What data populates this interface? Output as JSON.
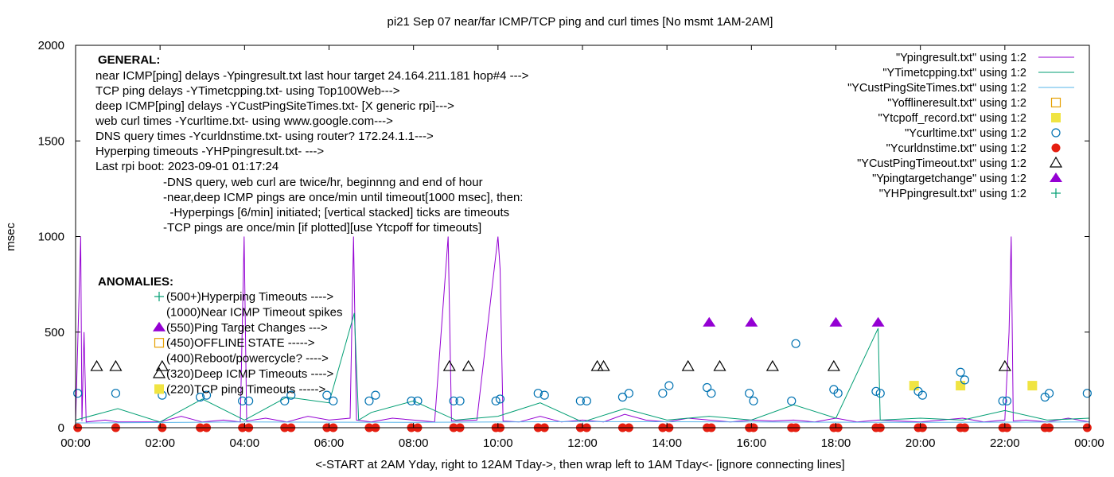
{
  "chart_data": {
    "type": "line",
    "title": "pi21 Sep 07  near/far ICMP/TCP ping and curl times [No msmt 1AM-2AM]",
    "ylabel": "msec",
    "xlabel": "<-START at 2AM Yday, right to 12AM Tday->, then wrap left to 1AM Tday<- [ignore connecting lines]",
    "xlim": [
      0,
      24
    ],
    "ylim": [
      0,
      2000
    ],
    "x_tick_labels": [
      "00:00",
      "02:00",
      "04:00",
      "06:00",
      "08:00",
      "10:00",
      "12:00",
      "14:00",
      "16:00",
      "18:00",
      "20:00",
      "22:00",
      "00:00"
    ],
    "y_tick_labels": [
      "0",
      "500",
      "1000",
      "1500",
      "2000"
    ],
    "grid": false,
    "legend_position": "top-right",
    "series": [
      {
        "name": "\"Ypingresult.txt\" using 1:2",
        "style": "line",
        "color": "#9400d3",
        "points": [
          [
            0,
            30
          ],
          [
            0.12,
            1000
          ],
          [
            0.15,
            35
          ],
          [
            0.2,
            500
          ],
          [
            0.25,
            30
          ],
          [
            0.7,
            40
          ],
          [
            1.0,
            30
          ],
          [
            2.0,
            30
          ],
          [
            2.5,
            60
          ],
          [
            3.0,
            30
          ],
          [
            3.5,
            40
          ],
          [
            3.9,
            30
          ],
          [
            3.99,
            1000
          ],
          [
            4.05,
            35
          ],
          [
            4.5,
            50
          ],
          [
            5.0,
            30
          ],
          [
            5.5,
            60
          ],
          [
            6.0,
            40
          ],
          [
            6.5,
            50
          ],
          [
            6.58,
            1000
          ],
          [
            6.65,
            40
          ],
          [
            7.0,
            30
          ],
          [
            7.5,
            50
          ],
          [
            8.0,
            40
          ],
          [
            8.5,
            30
          ],
          [
            8.82,
            1000
          ],
          [
            8.9,
            35
          ],
          [
            9.5,
            40
          ],
          [
            10.0,
            1000
          ],
          [
            10.05,
            830
          ],
          [
            10.12,
            35
          ],
          [
            10.5,
            30
          ],
          [
            11.0,
            60
          ],
          [
            11.5,
            30
          ],
          [
            12.0,
            40
          ],
          [
            12.5,
            30
          ],
          [
            13.0,
            70
          ],
          [
            13.5,
            40
          ],
          [
            14.0,
            30
          ],
          [
            14.5,
            50
          ],
          [
            15.0,
            40
          ],
          [
            15.5,
            30
          ],
          [
            16.0,
            40
          ],
          [
            16.5,
            35
          ],
          [
            17.0,
            40
          ],
          [
            17.5,
            30
          ],
          [
            18.0,
            50
          ],
          [
            18.5,
            30
          ],
          [
            19.0,
            40
          ],
          [
            19.5,
            35
          ],
          [
            20.0,
            30
          ],
          [
            20.5,
            40
          ],
          [
            21.0,
            50
          ],
          [
            21.5,
            30
          ],
          [
            22.0,
            40
          ],
          [
            22.1,
            500
          ],
          [
            22.15,
            1000
          ],
          [
            22.2,
            35
          ],
          [
            22.5,
            40
          ],
          [
            23.0,
            30
          ],
          [
            23.5,
            50
          ],
          [
            24.0,
            30
          ]
        ]
      },
      {
        "name": "\"YTimetcpping.txt\" using 1:2",
        "style": "line",
        "color": "#009e73",
        "points": [
          [
            0,
            40
          ],
          [
            1,
            100
          ],
          [
            2,
            30
          ],
          [
            3,
            150
          ],
          [
            4,
            40
          ],
          [
            5,
            160
          ],
          [
            6,
            130
          ],
          [
            6.6,
            600
          ],
          [
            6.7,
            40
          ],
          [
            7,
            80
          ],
          [
            8,
            140
          ],
          [
            9,
            40
          ],
          [
            10,
            60
          ],
          [
            11,
            130
          ],
          [
            12,
            30
          ],
          [
            13,
            100
          ],
          [
            14,
            40
          ],
          [
            15,
            60
          ],
          [
            16,
            40
          ],
          [
            17,
            120
          ],
          [
            18,
            50
          ],
          [
            19,
            520
          ],
          [
            19.05,
            40
          ],
          [
            20,
            50
          ],
          [
            21,
            40
          ],
          [
            22,
            90
          ],
          [
            23,
            40
          ],
          [
            24,
            50
          ]
        ]
      },
      {
        "name": "\"YCustPingSiteTimes.txt\" using 1:2",
        "style": "line",
        "color": "#56b4e9",
        "points": [
          [
            0,
            25
          ],
          [
            4,
            30
          ],
          [
            8,
            28
          ],
          [
            12,
            32
          ],
          [
            16,
            30
          ],
          [
            20,
            28
          ],
          [
            24,
            30
          ]
        ]
      },
      {
        "name": "\"Yofflineresult.txt\" using 1:2",
        "style": "open-square",
        "color": "#e69f00",
        "points": []
      },
      {
        "name": "\"Ytcpoff_record.txt\" using 1:2",
        "style": "filled-square",
        "color": "#f0e442",
        "points": [
          [
            19.85,
            220
          ],
          [
            20.95,
            220
          ],
          [
            22.65,
            220
          ]
        ]
      },
      {
        "name": "\"Ycurltime.txt\" using 1:2",
        "style": "open-circle",
        "color": "#0072b2",
        "points": [
          [
            0.05,
            180
          ],
          [
            0.95,
            180
          ],
          [
            2.05,
            170
          ],
          [
            2.95,
            160
          ],
          [
            3.1,
            170
          ],
          [
            3.95,
            140
          ],
          [
            4.1,
            140
          ],
          [
            4.95,
            140
          ],
          [
            5.1,
            170
          ],
          [
            5.95,
            170
          ],
          [
            6.1,
            140
          ],
          [
            6.95,
            140
          ],
          [
            7.1,
            170
          ],
          [
            7.95,
            140
          ],
          [
            8.1,
            140
          ],
          [
            8.95,
            140
          ],
          [
            9.1,
            140
          ],
          [
            9.95,
            140
          ],
          [
            10.05,
            150
          ],
          [
            10.95,
            180
          ],
          [
            11.1,
            170
          ],
          [
            11.95,
            140
          ],
          [
            12.1,
            140
          ],
          [
            12.95,
            160
          ],
          [
            13.1,
            180
          ],
          [
            13.9,
            180
          ],
          [
            14.05,
            220
          ],
          [
            14.95,
            210
          ],
          [
            15.05,
            180
          ],
          [
            15.95,
            180
          ],
          [
            16.05,
            140
          ],
          [
            16.95,
            140
          ],
          [
            17.05,
            440
          ],
          [
            17.95,
            200
          ],
          [
            18.05,
            180
          ],
          [
            18.95,
            190
          ],
          [
            19.05,
            180
          ],
          [
            19.95,
            190
          ],
          [
            20.05,
            170
          ],
          [
            20.95,
            290
          ],
          [
            21.05,
            250
          ],
          [
            21.95,
            140
          ],
          [
            22.05,
            140
          ],
          [
            22.95,
            160
          ],
          [
            23.05,
            180
          ],
          [
            23.95,
            180
          ]
        ]
      },
      {
        "name": "\"Ycurldnstime.txt\" using 1:2",
        "style": "filled-circle",
        "color": "#e51e10",
        "points": [
          [
            0.05,
            0
          ],
          [
            0.95,
            0
          ],
          [
            2.05,
            0
          ],
          [
            2.95,
            0
          ],
          [
            3.1,
            0
          ],
          [
            3.95,
            0
          ],
          [
            4.1,
            0
          ],
          [
            4.95,
            0
          ],
          [
            5.1,
            0
          ],
          [
            5.95,
            0
          ],
          [
            6.1,
            0
          ],
          [
            6.95,
            0
          ],
          [
            7.1,
            0
          ],
          [
            7.95,
            0
          ],
          [
            8.1,
            0
          ],
          [
            8.95,
            0
          ],
          [
            9.1,
            0
          ],
          [
            9.95,
            0
          ],
          [
            10.05,
            0
          ],
          [
            10.95,
            0
          ],
          [
            11.1,
            0
          ],
          [
            11.95,
            0
          ],
          [
            12.1,
            0
          ],
          [
            12.95,
            0
          ],
          [
            13.1,
            0
          ],
          [
            13.9,
            0
          ],
          [
            14.05,
            0
          ],
          [
            14.95,
            0
          ],
          [
            15.05,
            0
          ],
          [
            15.95,
            0
          ],
          [
            16.05,
            0
          ],
          [
            16.95,
            0
          ],
          [
            17.05,
            0
          ],
          [
            17.95,
            0
          ],
          [
            18.05,
            0
          ],
          [
            18.95,
            0
          ],
          [
            19.05,
            0
          ],
          [
            19.95,
            0
          ],
          [
            20.05,
            0
          ],
          [
            20.95,
            0
          ],
          [
            21.05,
            0
          ],
          [
            21.95,
            0
          ],
          [
            22.05,
            0
          ],
          [
            22.95,
            0
          ],
          [
            23.05,
            0
          ],
          [
            23.95,
            0
          ]
        ]
      },
      {
        "name": "\"YCustPingTimeout.txt\" using 1:2",
        "style": "open-triangle",
        "color": "#000000",
        "points": [
          [
            0.5,
            320
          ],
          [
            0.95,
            320
          ],
          [
            2.05,
            320
          ],
          [
            8.85,
            320
          ],
          [
            9.3,
            320
          ],
          [
            12.35,
            320
          ],
          [
            12.5,
            320
          ],
          [
            14.5,
            320
          ],
          [
            15.25,
            320
          ],
          [
            16.5,
            320
          ],
          [
            17.95,
            320
          ],
          [
            22.0,
            320
          ]
        ]
      },
      {
        "name": "\"Ypingtargetchange\" using 1:2",
        "style": "filled-triangle",
        "color": "#9400d3",
        "points": [
          [
            15.0,
            550
          ],
          [
            16.0,
            550
          ],
          [
            18.0,
            550
          ],
          [
            19.0,
            550
          ]
        ]
      },
      {
        "name": "\"YHPpingresult.txt\" using 1:2",
        "style": "plus",
        "color": "#009e73",
        "points": []
      }
    ],
    "annotations": {
      "general_heading": "GENERAL:",
      "general_lines": [
        "near ICMP[ping] delays -Ypingresult.txt last hour target 24.164.211.181 hop#4 --->",
        "TCP ping delays -YTimetcpping.txt- using Top100Web--->",
        "deep ICMP[ping] delays -YCustPingSiteTimes.txt- [X generic rpi]--->",
        "web curl times -Ycurltime.txt- using www.google.com--->",
        "DNS query times -Ycurldnstime.txt- using router? 172.24.1.1--->",
        "Hyperping timeouts -YHPpingresult.txt- --->",
        "Last rpi boot: 2023-09-01 01:17:24"
      ],
      "general_notes": [
        "-DNS query, web curl are twice/hr, beginnng and end of hour",
        "-near,deep ICMP pings are once/min until timeout[1000 msec], then:",
        "  -Hyperpings [6/min] initiated; [vertical stacked] ticks are timeouts",
        "-TCP pings are once/min [if plotted][use Ytcpoff for timeouts]"
      ],
      "anomalies_heading": "ANOMALIES:",
      "anomalies": [
        {
          "text": "(500+)Hyperping Timeouts ---->",
          "marker": "plus",
          "color": "#009e73"
        },
        {
          "text": "(1000)Near ICMP Timeout spikes",
          "marker": "none",
          "color": "#000000"
        },
        {
          "text": "(550)Ping Target Changes --->",
          "marker": "filled-triangle",
          "color": "#9400d3"
        },
        {
          "text": "(450)OFFLINE STATE ----->",
          "marker": "open-square",
          "color": "#e69f00"
        },
        {
          "text": "(400)Reboot/powercycle? ---->",
          "marker": "none",
          "color": "#000000"
        },
        {
          "text": "(320)Deep ICMP Timeouts ---->",
          "marker": "open-triangle",
          "color": "#000000"
        },
        {
          "text": "(220)TCP ping Timeouts ----->",
          "marker": "filled-square",
          "color": "#f0e442"
        }
      ]
    }
  }
}
